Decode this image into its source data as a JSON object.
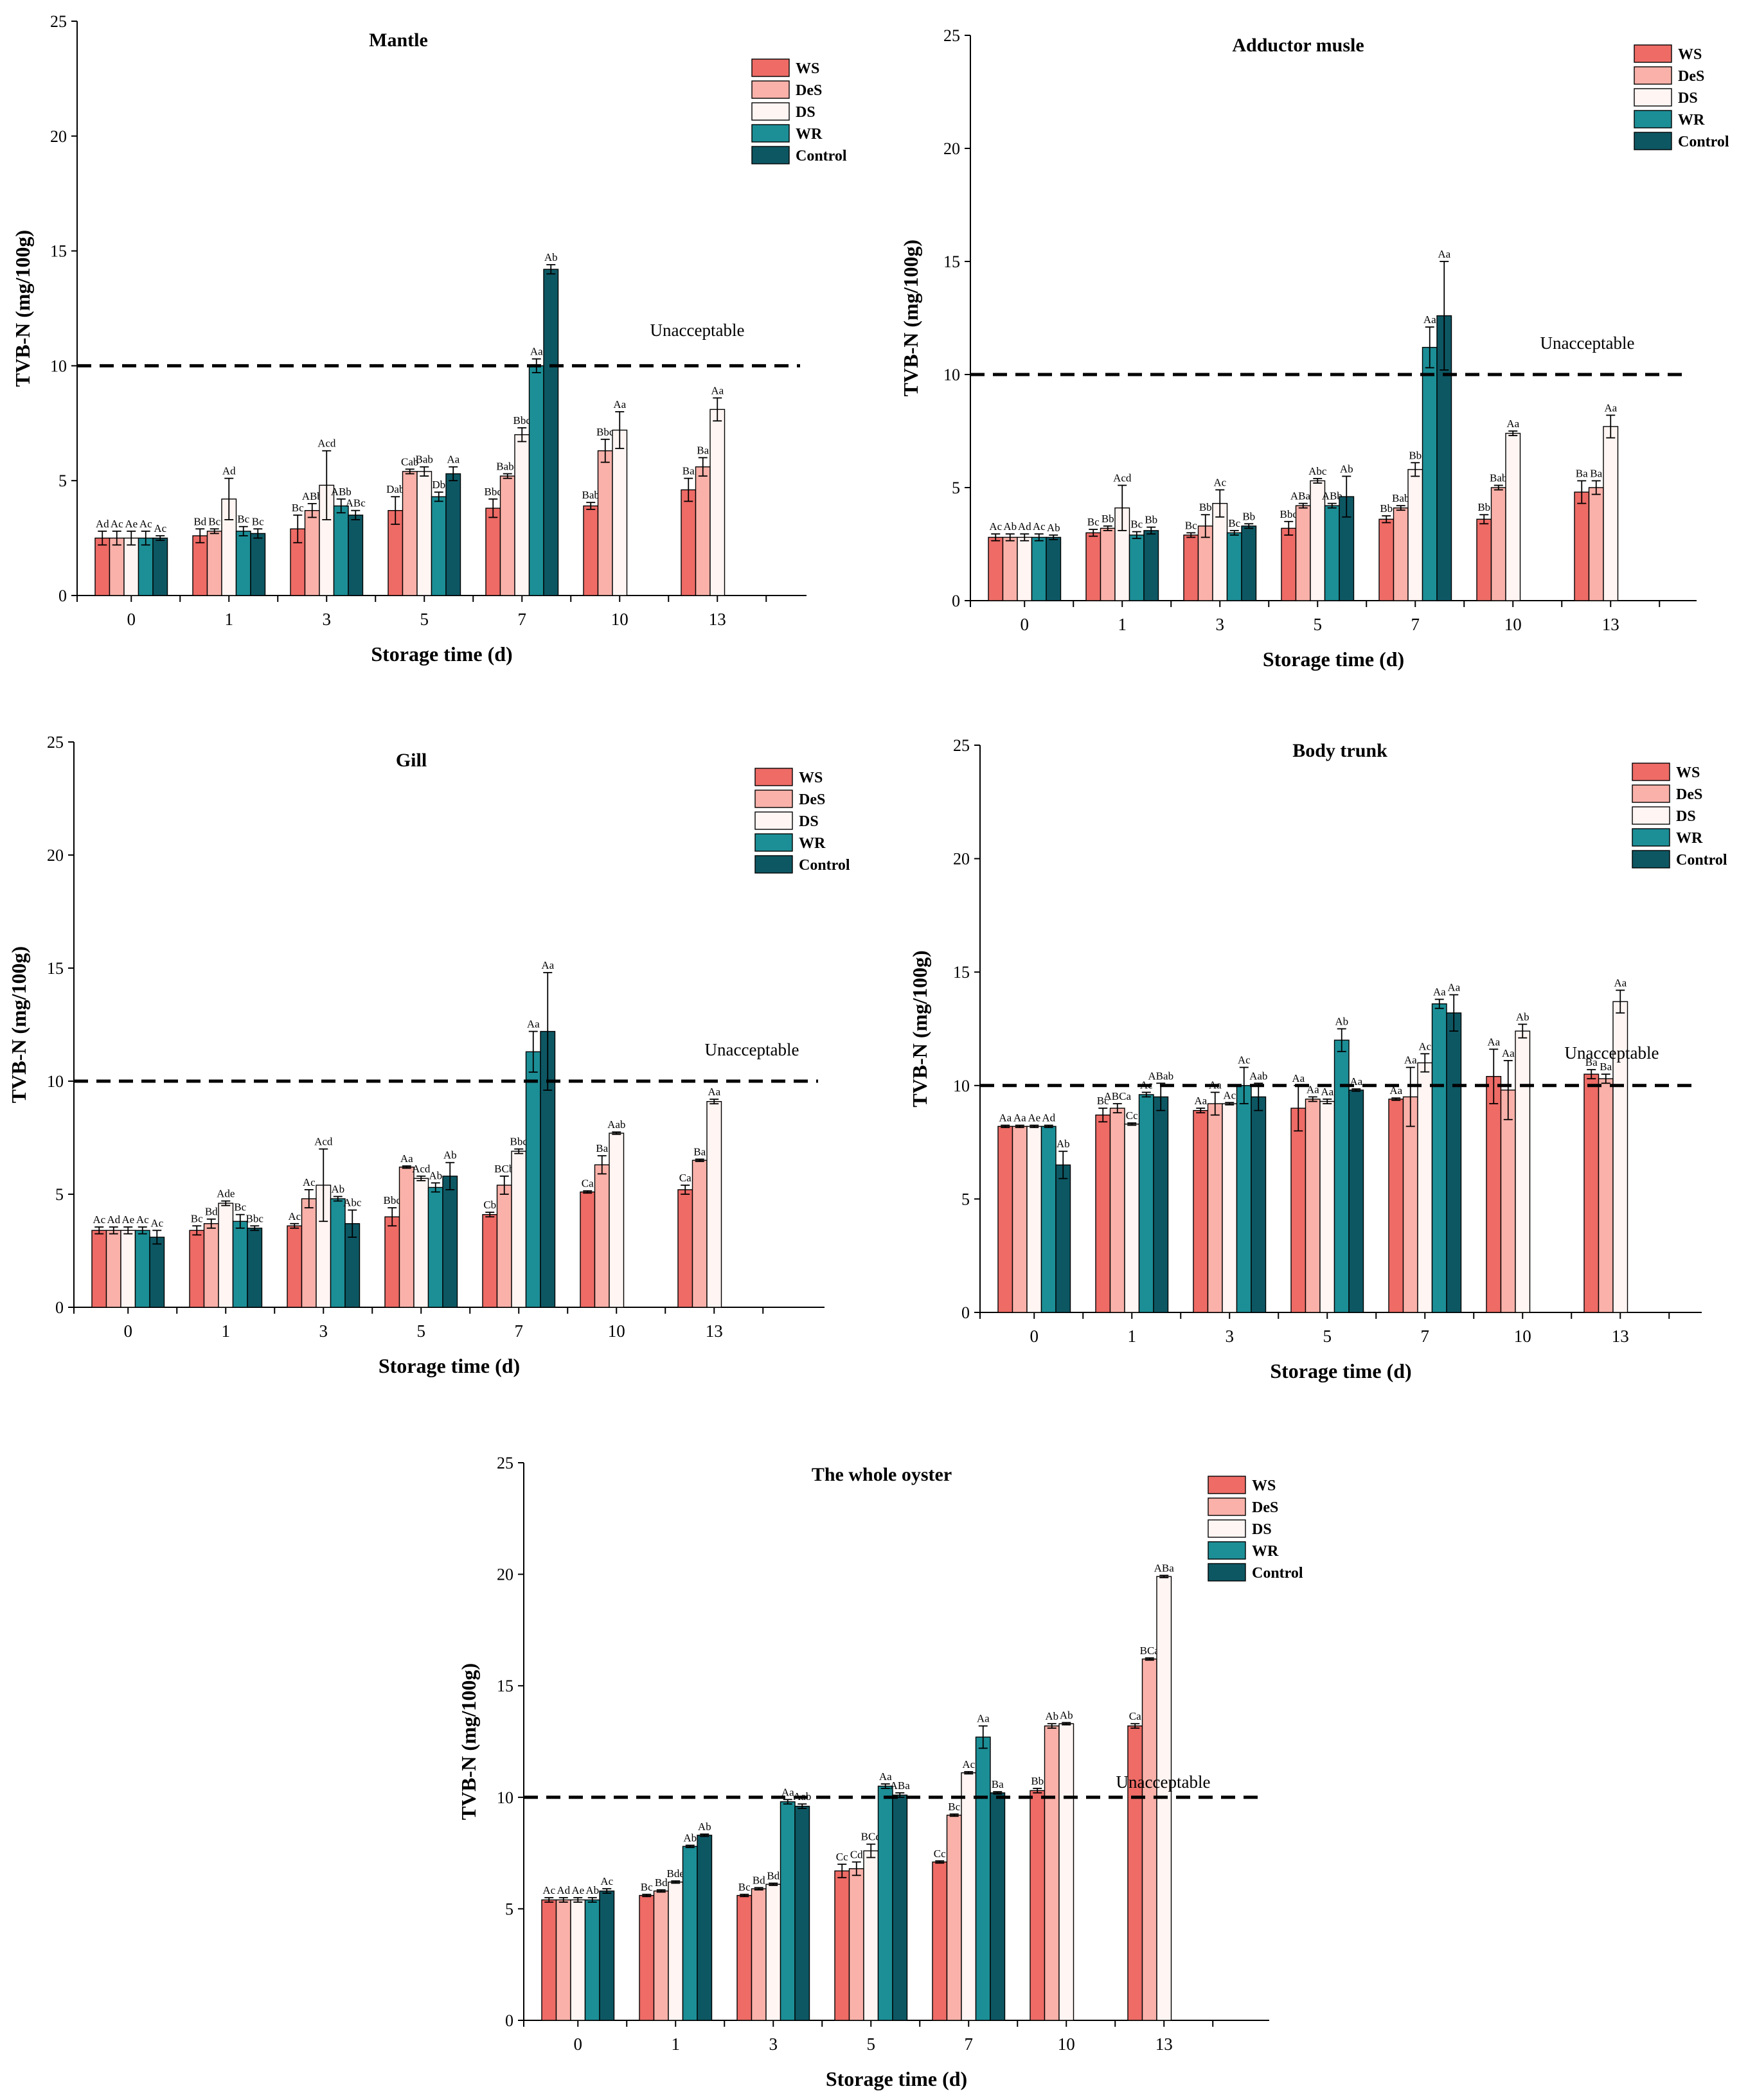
{
  "figure": {
    "y_axis_label": "TVB-N (mg/100g)",
    "x_axis_label": "Storage time (d)",
    "threshold_label": "Unacceptable",
    "threshold_value": 10,
    "series_colors": {
      "WS": "#ee6b66",
      "DeS": "#f9b1a9",
      "DS": "#fff5f3",
      "WR": "#1c8e96",
      "Control": "#0d5763"
    }
  },
  "chart_data": [
    {
      "type": "bar",
      "title": "Mantle",
      "xlabel": "Storage time (d)",
      "ylabel": "TVB-N (mg/100g)",
      "categories": [
        "0",
        "1",
        "3",
        "5",
        "7",
        "10",
        "13"
      ],
      "ylim": [
        0,
        25
      ],
      "yticks": [
        0,
        5,
        10,
        15,
        20,
        25
      ],
      "threshold": 10,
      "threshold_label": "Unacceptable",
      "legend": "top-right",
      "series": [
        {
          "name": "WS",
          "values": [
            2.5,
            2.6,
            2.9,
            3.7,
            3.8,
            3.9,
            4.6
          ],
          "errors": [
            0.3,
            0.3,
            0.6,
            0.6,
            0.4,
            0.15,
            0.5
          ],
          "labels": [
            "Ad",
            "Bd",
            "Bc",
            "Dab",
            "Bbc",
            "Bab",
            "Ba"
          ]
        },
        {
          "name": "DeS",
          "values": [
            2.5,
            2.8,
            3.7,
            5.4,
            5.2,
            6.3,
            5.6
          ],
          "errors": [
            0.3,
            0.1,
            0.3,
            0.1,
            0.1,
            0.5,
            0.4
          ],
          "labels": [
            "Ac",
            "Bc",
            "ABb",
            "Cab",
            "Babc",
            "Bbc",
            "Ba"
          ]
        },
        {
          "name": "DS",
          "values": [
            2.5,
            4.2,
            4.8,
            5.4,
            7.0,
            7.2,
            8.1
          ],
          "errors": [
            0.3,
            0.9,
            1.5,
            0.2,
            0.3,
            0.8,
            0.5
          ],
          "labels": [
            "Ae",
            "Ad",
            "Acd",
            "Bab",
            "Bbc",
            "Aa",
            "Aa"
          ]
        },
        {
          "name": "WR",
          "values": [
            2.5,
            2.8,
            3.9,
            4.3,
            10.0,
            null,
            null
          ],
          "errors": [
            0.3,
            0.2,
            0.3,
            0.2,
            0.3,
            null,
            null
          ],
          "labels": [
            "Ac",
            "Bc",
            "ABb",
            "Db",
            "Aa",
            null,
            null
          ]
        },
        {
          "name": "Control",
          "values": [
            2.5,
            2.7,
            3.5,
            5.3,
            14.2,
            null,
            null
          ],
          "errors": [
            0.1,
            0.2,
            0.2,
            0.3,
            0.2,
            null,
            null
          ],
          "labels": [
            "Ac",
            "Bc",
            "ABc",
            "Aa",
            "Ab",
            null,
            null
          ]
        }
      ]
    },
    {
      "type": "bar",
      "title": "Adductor musle",
      "xlabel": "Storage time (d)",
      "ylabel": "TVB-N (mg/100g)",
      "categories": [
        "0",
        "1",
        "3",
        "5",
        "7",
        "10",
        "13"
      ],
      "ylim": [
        0,
        25
      ],
      "yticks": [
        0,
        5,
        10,
        15,
        20,
        25
      ],
      "threshold": 10,
      "threshold_label": "Unacceptable",
      "legend": "top-right",
      "series": [
        {
          "name": "WS",
          "values": [
            2.8,
            3.0,
            2.9,
            3.2,
            3.6,
            3.6,
            4.8
          ],
          "errors": [
            0.15,
            0.15,
            0.1,
            0.3,
            0.15,
            0.2,
            0.5
          ],
          "labels": [
            "Ac",
            "Bc",
            "Bc",
            "Bbc",
            "Bb",
            "Bb",
            "Ba"
          ]
        },
        {
          "name": "DeS",
          "values": [
            2.8,
            3.2,
            3.3,
            4.2,
            4.1,
            5.0,
            5.0
          ],
          "errors": [
            0.15,
            0.1,
            0.5,
            0.1,
            0.1,
            0.1,
            0.3
          ],
          "labels": [
            "Ab",
            "Bb",
            "Bb",
            "ABab",
            "Bab",
            "Bab",
            "Ba"
          ]
        },
        {
          "name": "DS",
          "values": [
            2.8,
            4.1,
            4.3,
            5.3,
            5.8,
            7.4,
            7.7
          ],
          "errors": [
            0.15,
            1.0,
            0.6,
            0.1,
            0.3,
            0.1,
            0.5
          ],
          "labels": [
            "Ad",
            "Acd",
            "Ac",
            "Abc",
            "Bb",
            "Aa",
            "Aa"
          ]
        },
        {
          "name": "WR",
          "values": [
            2.8,
            2.9,
            3.0,
            4.2,
            11.2,
            null,
            null
          ],
          "errors": [
            0.15,
            0.15,
            0.1,
            0.1,
            0.9,
            null,
            null
          ],
          "labels": [
            "Ac",
            "Bc",
            "Bc",
            "ABb",
            "Aa",
            null,
            null
          ]
        },
        {
          "name": "Control",
          "values": [
            2.8,
            3.1,
            3.3,
            4.6,
            12.6,
            null,
            null
          ],
          "errors": [
            0.1,
            0.15,
            0.1,
            0.9,
            2.4,
            null,
            null
          ],
          "labels": [
            "Ab",
            "Bb",
            "Bb",
            "Ab",
            "Aa",
            null,
            null
          ]
        }
      ]
    },
    {
      "type": "bar",
      "title": "Gill",
      "xlabel": "Storage time (d)",
      "ylabel": "TVB-N (mg/100g)",
      "categories": [
        "0",
        "1",
        "3",
        "5",
        "7",
        "10",
        "13"
      ],
      "ylim": [
        0,
        25
      ],
      "yticks": [
        0,
        5,
        10,
        15,
        20,
        25
      ],
      "threshold": 10,
      "threshold_label": "Unacceptable",
      "legend": "top-right",
      "series": [
        {
          "name": "WS",
          "values": [
            3.4,
            3.4,
            3.6,
            4.0,
            4.1,
            5.1,
            5.2
          ],
          "errors": [
            0.15,
            0.2,
            0.1,
            0.4,
            0.1,
            0.05,
            0.2
          ],
          "labels": [
            "Ac",
            "Bc",
            "Ac",
            "Bbc",
            "Cb",
            "Ca",
            "Ca"
          ]
        },
        {
          "name": "DeS",
          "values": [
            3.4,
            3.7,
            4.8,
            6.2,
            5.4,
            6.3,
            6.5
          ],
          "errors": [
            0.15,
            0.2,
            0.4,
            0.05,
            0.4,
            0.4,
            0.05
          ],
          "labels": [
            "Ad",
            "Bd",
            "Ac",
            "Aa",
            "BCb",
            "Ba",
            "Ba"
          ]
        },
        {
          "name": "DS",
          "values": [
            3.4,
            4.6,
            5.4,
            5.7,
            6.9,
            7.7,
            9.1
          ],
          "errors": [
            0.15,
            0.1,
            1.6,
            0.1,
            0.1,
            0.05,
            0.1
          ],
          "labels": [
            "Ae",
            "Ade",
            "Acd",
            "Acd",
            "Bbc",
            "Aab",
            "Aa"
          ]
        },
        {
          "name": "WR",
          "values": [
            3.4,
            3.8,
            4.8,
            5.3,
            11.3,
            null,
            null
          ],
          "errors": [
            0.15,
            0.3,
            0.1,
            0.2,
            0.9,
            null,
            null
          ],
          "labels": [
            "Ac",
            "Bc",
            "Ab",
            "Ab",
            "Aa",
            null,
            null
          ]
        },
        {
          "name": "Control",
          "values": [
            3.1,
            3.5,
            3.7,
            5.8,
            12.2,
            null,
            null
          ],
          "errors": [
            0.3,
            0.1,
            0.6,
            0.6,
            2.6,
            null,
            null
          ],
          "labels": [
            "Ac",
            "Bbc",
            "Abc",
            "Ab",
            "Aa",
            null,
            null
          ]
        }
      ]
    },
    {
      "type": "bar",
      "title": "Body trunk",
      "xlabel": "Storage time (d)",
      "ylabel": "TVB-N (mg/100g)",
      "categories": [
        "0",
        "1",
        "3",
        "5",
        "7",
        "10",
        "13"
      ],
      "ylim": [
        0,
        25
      ],
      "yticks": [
        0,
        5,
        10,
        15,
        20,
        25
      ],
      "threshold": 10,
      "threshold_label": "Unacceptable",
      "legend": "top-right",
      "series": [
        {
          "name": "WS",
          "values": [
            8.2,
            8.7,
            8.9,
            9.0,
            9.4,
            10.4,
            10.5
          ],
          "errors": [
            0.05,
            0.3,
            0.1,
            1.0,
            0.05,
            1.2,
            0.2
          ],
          "labels": [
            "Aa",
            "Bc",
            "Aa",
            "Aa",
            "Aa",
            "Aa",
            "Ba"
          ]
        },
        {
          "name": "DeS",
          "values": [
            8.2,
            9.0,
            9.2,
            9.4,
            9.5,
            9.8,
            10.3
          ],
          "errors": [
            0.05,
            0.2,
            0.5,
            0.1,
            1.3,
            1.3,
            0.2
          ],
          "labels": [
            "Aa",
            "ABCa",
            "Aa",
            "Aa",
            "Aa",
            "Aa",
            "Ba"
          ]
        },
        {
          "name": "DS",
          "values": [
            8.2,
            8.3,
            9.2,
            9.3,
            11.0,
            12.4,
            13.7
          ],
          "errors": [
            0.05,
            0.05,
            0.05,
            0.1,
            0.4,
            0.3,
            0.5
          ],
          "labels": [
            "Ae",
            "Cc",
            "Ac",
            "Aa",
            "Ac",
            "Ab",
            "Aa"
          ]
        },
        {
          "name": "WR",
          "values": [
            8.2,
            9.6,
            10.0,
            12.0,
            13.6,
            null,
            null
          ],
          "errors": [
            0.05,
            0.1,
            0.8,
            0.5,
            0.2,
            null,
            null
          ],
          "labels": [
            "Ad",
            "Ac",
            "Ac",
            "Ab",
            "Aa",
            null,
            null
          ]
        },
        {
          "name": "Control",
          "values": [
            6.5,
            9.5,
            9.5,
            9.8,
            13.2,
            null,
            null
          ],
          "errors": [
            0.6,
            0.6,
            0.6,
            0.05,
            0.8,
            null,
            null
          ],
          "labels": [
            "Ab",
            "ABab",
            "Aab",
            "Aa",
            "Aa",
            null,
            null
          ]
        }
      ]
    },
    {
      "type": "bar",
      "title": "The whole oyster",
      "xlabel": "Storage time (d)",
      "ylabel": "TVB-N (mg/100g)",
      "categories": [
        "0",
        "1",
        "3",
        "5",
        "7",
        "10",
        "13"
      ],
      "ylim": [
        0,
        25
      ],
      "yticks": [
        0,
        5,
        10,
        15,
        20,
        25
      ],
      "threshold": 10,
      "threshold_label": "Unacceptable",
      "legend": "top-right",
      "series": [
        {
          "name": "WS",
          "values": [
            5.4,
            5.6,
            5.6,
            6.7,
            7.1,
            10.3,
            13.2
          ],
          "errors": [
            0.1,
            0.05,
            0.05,
            0.3,
            0.05,
            0.1,
            0.1
          ],
          "labels": [
            "Ac",
            "Bc",
            "Bc",
            "Cc",
            "Cc",
            "Bb",
            "Ca"
          ]
        },
        {
          "name": "DeS",
          "values": [
            5.4,
            5.8,
            5.9,
            6.8,
            9.2,
            13.2,
            16.2
          ],
          "errors": [
            0.1,
            0.05,
            0.05,
            0.3,
            0.05,
            0.1,
            0.05
          ],
          "labels": [
            "Ad",
            "Bd",
            "Bd",
            "Cd",
            "Bc",
            "Ab",
            "BCa"
          ]
        },
        {
          "name": "DS",
          "values": [
            5.4,
            6.2,
            6.1,
            7.6,
            11.1,
            13.3,
            19.9
          ],
          "errors": [
            0.1,
            0.05,
            0.05,
            0.3,
            0.05,
            0.05,
            0.05
          ],
          "labels": [
            "Ae",
            "Bde",
            "Bd",
            "BCd",
            "Ac",
            "Ab",
            "ABa"
          ]
        },
        {
          "name": "WR",
          "values": [
            5.4,
            7.8,
            9.8,
            10.5,
            12.7,
            null,
            null
          ],
          "errors": [
            0.1,
            0.05,
            0.1,
            0.1,
            0.5,
            null,
            null
          ],
          "labels": [
            "Ab",
            "Ab",
            "Aa",
            "Aa",
            "Aa",
            null,
            null
          ]
        },
        {
          "name": "Control",
          "values": [
            5.8,
            8.3,
            9.6,
            10.1,
            10.2,
            null,
            null
          ],
          "errors": [
            0.1,
            0.05,
            0.1,
            0.1,
            0.05,
            null,
            null
          ],
          "labels": [
            "Ac",
            "Ab",
            "Aab",
            "ABa",
            "Ba",
            null,
            null
          ]
        }
      ]
    }
  ]
}
